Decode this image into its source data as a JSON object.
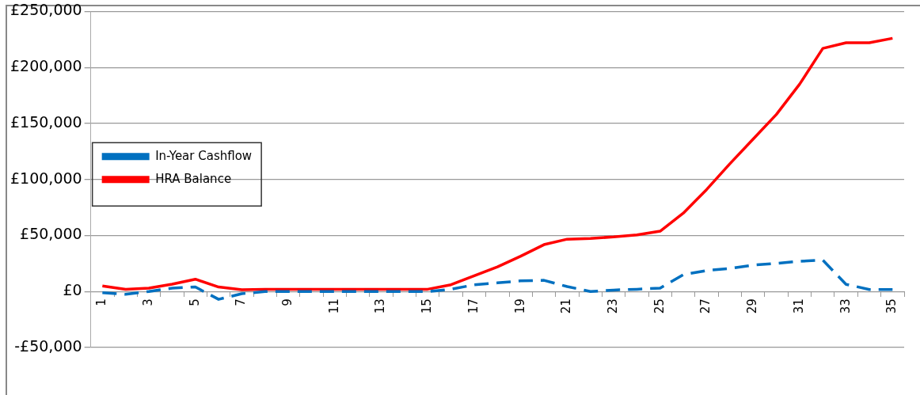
{
  "chart_data": {
    "type": "line",
    "categories": [
      "1",
      null,
      "3",
      null,
      "5",
      null,
      "7",
      null,
      "9",
      null,
      "11",
      null,
      "13",
      null,
      "15",
      null,
      "17",
      null,
      "19",
      null,
      "21",
      null,
      "23",
      null,
      "25",
      null,
      "27",
      null,
      "29",
      null,
      "31",
      null,
      "33",
      null,
      "35"
    ],
    "series": [
      {
        "name": "In-Year Cashflow",
        "color": "#0070c0",
        "line_style": "dashed",
        "values": [
          -1000,
          -2500,
          0,
          3000,
          4000,
          -7000,
          -2000,
          0,
          0,
          0,
          0,
          0,
          0,
          0,
          0,
          2000,
          6000,
          7700,
          9500,
          10000,
          4400,
          0,
          1300,
          2000,
          3000,
          15000,
          18700,
          20500,
          23600,
          25000,
          27000,
          28000,
          6400,
          1800,
          1800
        ]
      },
      {
        "name": "HRA Balance",
        "color": "#ff0000",
        "line_style": "solid",
        "values": [
          5000,
          2000,
          3000,
          6500,
          11000,
          4000,
          1500,
          2000,
          2000,
          2000,
          2000,
          2000,
          2000,
          2000,
          2000,
          6000,
          14000,
          22000,
          31500,
          41800,
          46700,
          47400,
          48700,
          50500,
          53800,
          70000,
          91000,
          114000,
          136000,
          158000,
          185000,
          217000,
          222000,
          222000,
          226000
        ]
      }
    ],
    "ylim": [
      -50000,
      250000
    ],
    "yticks": [
      {
        "value": -50000,
        "label": "-£50,000"
      },
      {
        "value": 0,
        "label": "£0"
      },
      {
        "value": 50000,
        "label": "£50,000"
      },
      {
        "value": 100000,
        "label": "£100,000"
      },
      {
        "value": 150000,
        "label": "£150,000"
      },
      {
        "value": 200000,
        "label": "£200,000"
      },
      {
        "value": 250000,
        "label": "£250,000"
      }
    ],
    "grid": "y",
    "legend": "left",
    "marker": "none"
  }
}
